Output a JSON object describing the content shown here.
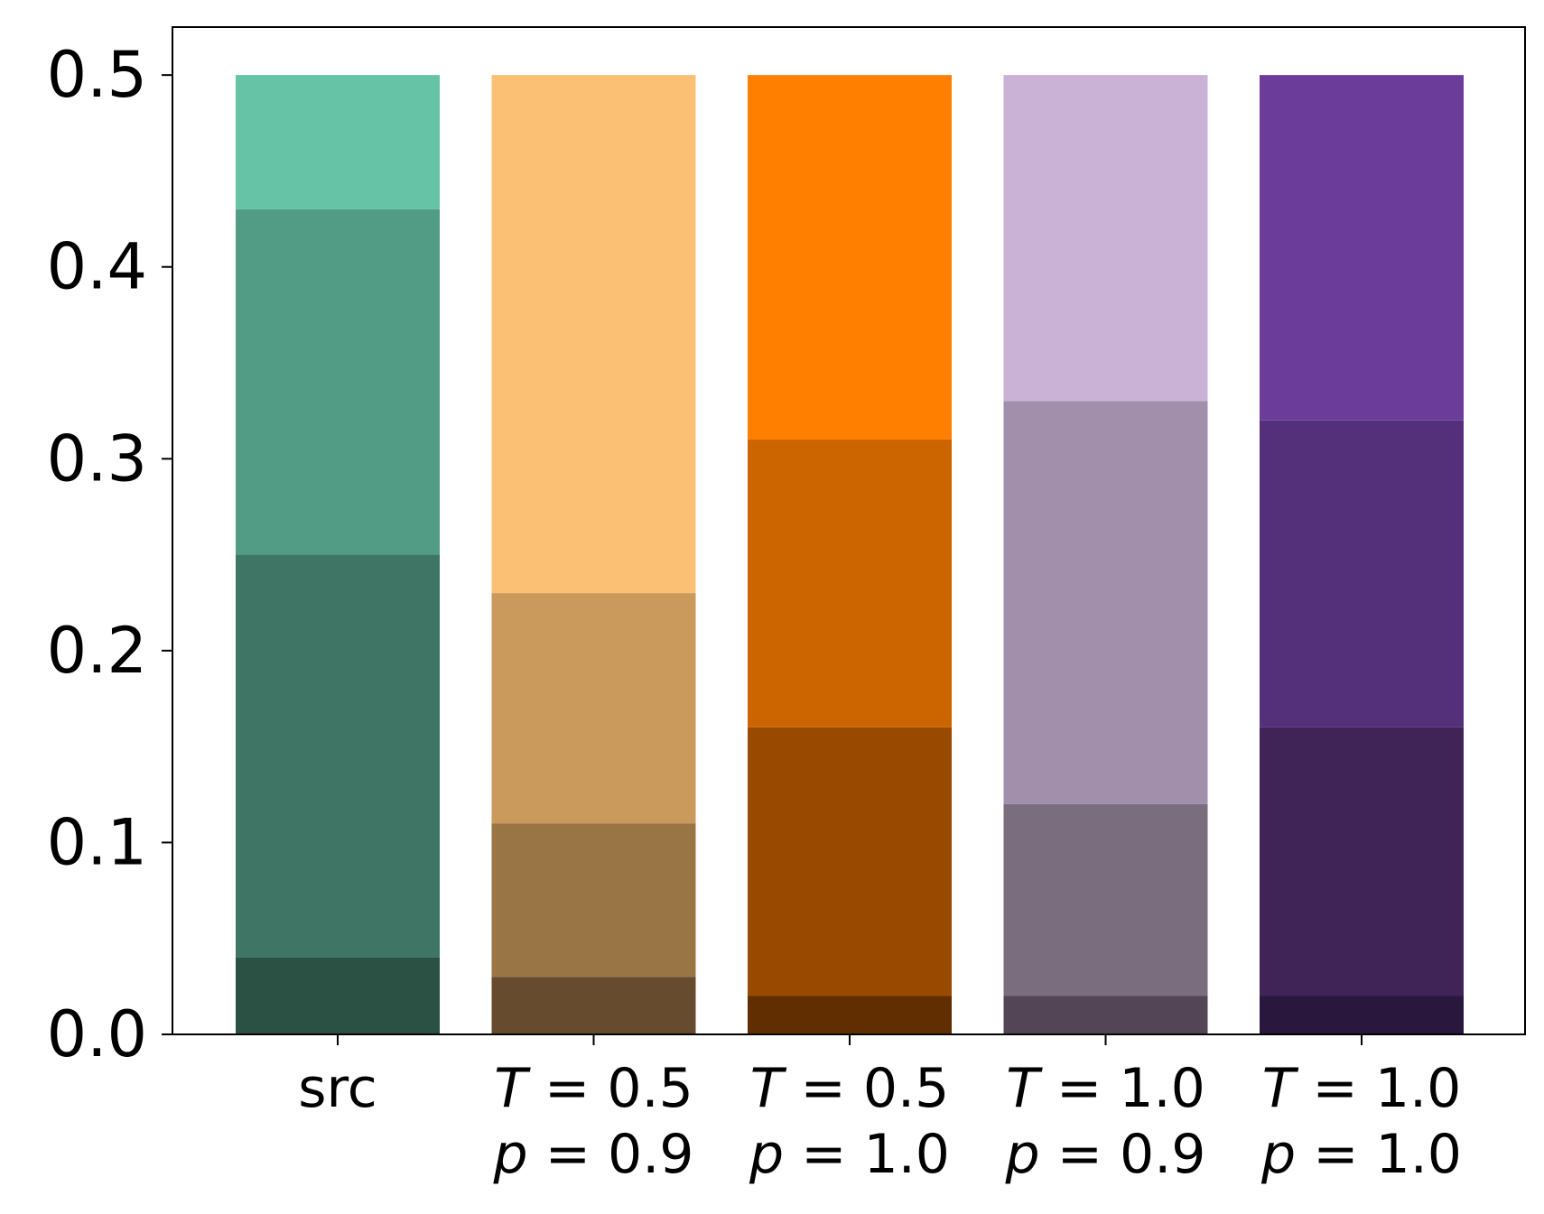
{
  "chart_data": {
    "type": "bar",
    "stacked": true,
    "title": "",
    "xlabel": "",
    "ylabel": "",
    "ylim": [
      0,
      0.525
    ],
    "yticks": [
      "0.0",
      "0.1",
      "0.2",
      "0.3",
      "0.4",
      "0.5"
    ],
    "grid": false,
    "categories": [
      {
        "line1": "src",
        "line2": ""
      },
      {
        "line1": "T = 0.5",
        "line2": "p = 0.9"
      },
      {
        "line1": "T = 0.5",
        "line2": "p = 1.0"
      },
      {
        "line1": "T = 1.0",
        "line2": "p = 0.9"
      },
      {
        "line1": "T = 1.0",
        "line2": "p = 1.0"
      }
    ],
    "segment_bounds": [
      [
        0,
        0.04,
        0.25,
        0.43,
        0.5
      ],
      [
        0,
        0.03,
        0.11,
        0.23,
        0.5
      ],
      [
        0,
        0.02,
        0.16,
        0.31,
        0.5
      ],
      [
        0,
        0.02,
        0.12,
        0.33,
        0.5
      ],
      [
        0,
        0.02,
        0.16,
        0.32,
        0.5
      ]
    ],
    "segment_colors": [
      [
        "#2b5044",
        "#3f7565",
        "#529b84",
        "#67c3a6"
      ],
      [
        "#664b2e",
        "#997545",
        "#c99a5c",
        "#fcc075"
      ],
      [
        "#602e00",
        "#994a00",
        "#cc6500",
        "#ff8000"
      ],
      [
        "#534556",
        "#796d7e",
        "#a28fab",
        "#cab2d6"
      ],
      [
        "#2a173d",
        "#402458",
        "#54307b",
        "#6b3c9a"
      ]
    ]
  }
}
